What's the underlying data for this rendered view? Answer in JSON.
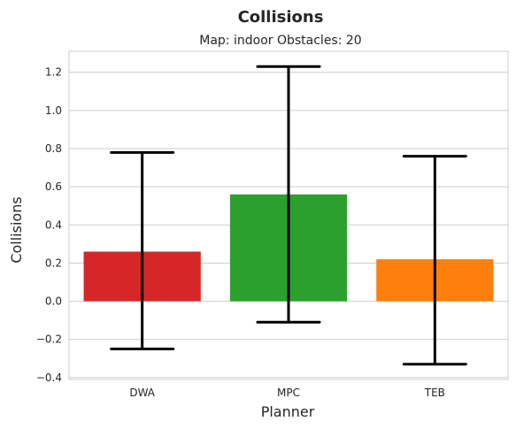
{
  "chart_data": {
    "type": "bar",
    "title": "Collisions",
    "subtitle": "Map: indoor Obstacles: 20",
    "xlabel": "Planner",
    "ylabel": "Collisions",
    "categories": [
      "DWA",
      "MPC",
      "TEB"
    ],
    "values": [
      0.26,
      0.56,
      0.22
    ],
    "error_low": [
      -0.25,
      -0.11,
      -0.33
    ],
    "error_high": [
      0.78,
      1.23,
      0.76
    ],
    "colors": [
      "#d62728",
      "#2ca02c",
      "#ff7f0e"
    ],
    "ylim": [
      -0.41,
      1.31
    ],
    "yticks": [
      -0.4,
      -0.2,
      0.0,
      0.2,
      0.4,
      0.6,
      0.8,
      1.0,
      1.2
    ],
    "ytick_labels": [
      "−0.4",
      "−0.2",
      "0.0",
      "0.2",
      "0.4",
      "0.6",
      "0.8",
      "1.0",
      "1.2"
    ],
    "grid": true
  }
}
